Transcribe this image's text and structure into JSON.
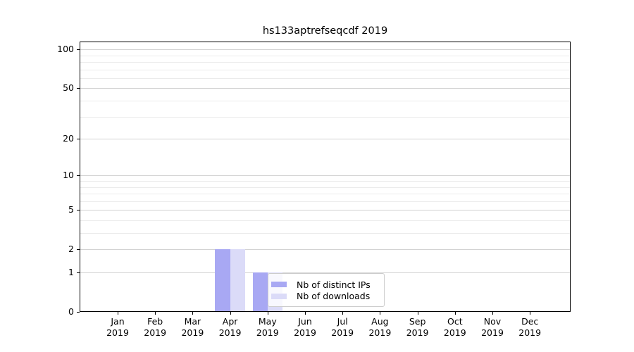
{
  "title": "hs133aptrefseqcdf 2019",
  "chart_data": {
    "type": "bar",
    "title": "hs133aptrefseqcdf 2019",
    "categories": [
      "Jan",
      "Feb",
      "Mar",
      "Apr",
      "May",
      "Jun",
      "Jul",
      "Aug",
      "Sep",
      "Oct",
      "Nov",
      "Dec"
    ],
    "x_year": "2019",
    "series": [
      {
        "name": "Nb of distinct IPs",
        "color": "#a8a8f3",
        "values": [
          0,
          0,
          0,
          2,
          1,
          0,
          0,
          0,
          0,
          0,
          0,
          0
        ]
      },
      {
        "name": "Nb of downloads",
        "color": "#dbdbf8",
        "values": [
          0,
          0,
          0,
          2,
          1,
          0,
          0,
          0,
          0,
          0,
          0,
          0
        ]
      }
    ],
    "yscale": "log1p",
    "ylim": [
      0,
      115
    ],
    "y_major_ticks": [
      0,
      1,
      2,
      5,
      10,
      20,
      50,
      100
    ],
    "y_minor_ticks": [
      3,
      4,
      6,
      7,
      8,
      9,
      30,
      40,
      60,
      70,
      80,
      90
    ],
    "grid": "horizontal",
    "legend_position": "lower center",
    "colors": {
      "axis": "#000000",
      "grid_major": "#d2d2d2",
      "grid_minor": "#ebebeb",
      "background": "#ffffff"
    }
  }
}
